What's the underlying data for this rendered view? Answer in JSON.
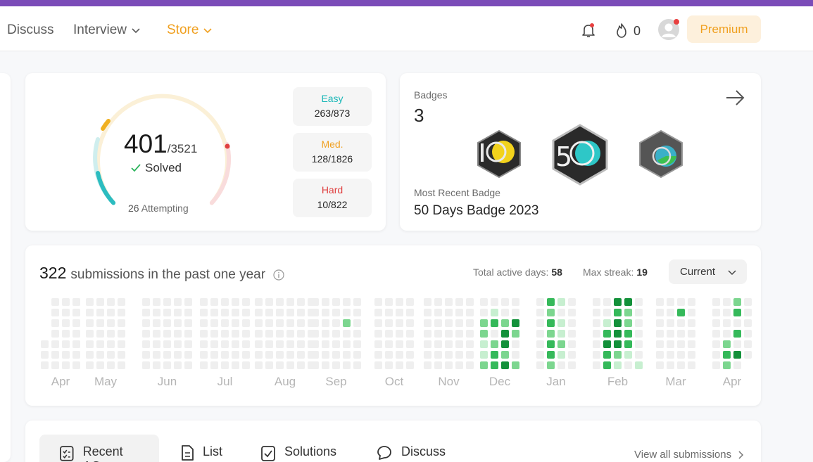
{
  "nav": {
    "links": [
      "Discuss",
      "Interview",
      "Store"
    ],
    "streak_count": "0",
    "premium_label": "Premium",
    "accent_color": "#f0a020"
  },
  "solved": {
    "solved_count": "401",
    "total": "/3521",
    "solved_label": "Solved",
    "attempting_count": "26",
    "attempting_label": "Attempting",
    "difficulties": [
      {
        "name": "Easy",
        "value": "263/873",
        "color": "#1cb8b8"
      },
      {
        "name": "Med.",
        "value": "128/1826",
        "color": "#f0a020"
      },
      {
        "name": "Hard",
        "value": "10/822",
        "color": "#e04040"
      }
    ]
  },
  "badges": {
    "title": "Badges",
    "count": "3",
    "recent_label": "Most Recent Badge",
    "recent_name": "50 Days Badge 2023"
  },
  "submissions": {
    "count": "322",
    "label": "submissions in the past one year",
    "active_days_label": "Total active days:",
    "active_days": "58",
    "max_streak_label": "Max streak:",
    "max_streak": "19",
    "range_select": "Current",
    "months": [
      "Apr",
      "May",
      "Jun",
      "Jul",
      "Aug",
      "Sep",
      "Oct",
      "Nov",
      "Dec",
      "Jan",
      "Feb",
      "Mar",
      "Apr"
    ]
  },
  "tabs": {
    "items": [
      "Recent AC",
      "List",
      "Solutions",
      "Discuss"
    ],
    "view_all": "View all submissions"
  }
}
